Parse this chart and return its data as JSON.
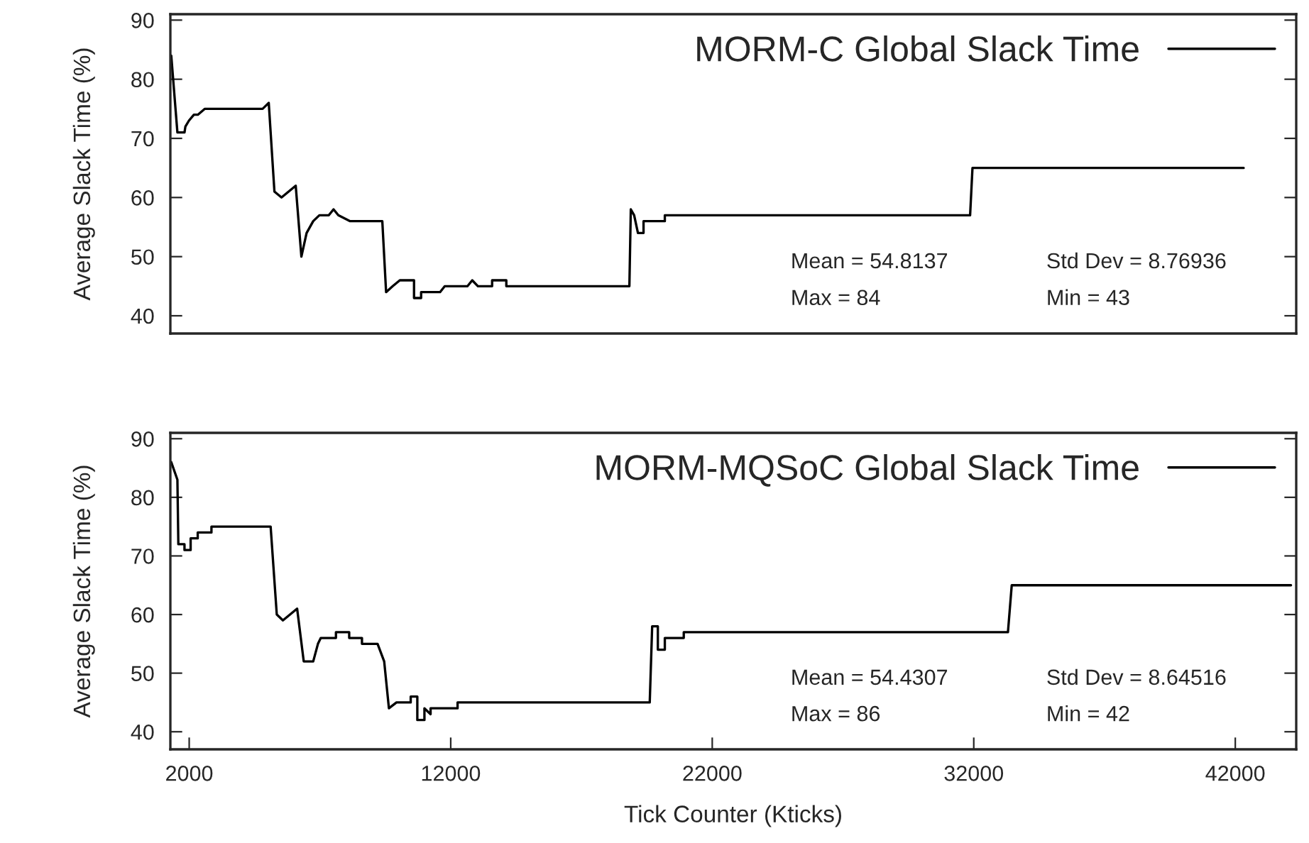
{
  "chart_data": [
    {
      "type": "line",
      "ylabel": "Average Slack Time (%)",
      "xlim": [
        1280,
        44330
      ],
      "ylim": [
        37,
        91
      ],
      "yticks": [
        40,
        50,
        60,
        70,
        80,
        90
      ],
      "tick_labels": "y",
      "legend": "top right",
      "grid": false,
      "series": [
        {
          "name": "MORM-C Global Slack Time",
          "color": "#000000",
          "x": [
            1314,
            1549,
            1820,
            1855,
            1990,
            2180,
            2330,
            2600,
            2815,
            4807,
            5042,
            5259,
            5530,
            6073,
            6290,
            6489,
            6742,
            6977,
            7339,
            7520,
            7701,
            8153,
            9384,
            9529,
            9782,
            10054,
            10597,
            10597,
            10868,
            10868,
            11592,
            11773,
            12642,
            12823,
            13040,
            13583,
            13583,
            14126,
            14126,
            18832,
            18886,
            19014,
            19159,
            19373,
            19373,
            20187,
            20187,
            31860,
            31951,
            42320
          ],
          "values": [
            84,
            71,
            71,
            72,
            73,
            74,
            74,
            75,
            75,
            75,
            76,
            61,
            60,
            62,
            50,
            54,
            56,
            57,
            57,
            58,
            57,
            56,
            56,
            44,
            45,
            46,
            46,
            43,
            43,
            44,
            44,
            45,
            45,
            46,
            45,
            45,
            46,
            46,
            45,
            45,
            58,
            57,
            54,
            54,
            56,
            56,
            57,
            57,
            65,
            65
          ]
        }
      ],
      "annotations": [
        "Mean = 54.8137",
        "Std Dev = 8.76936",
        "Max = 84",
        "Min = 43"
      ]
    },
    {
      "type": "line",
      "ylabel": "Average Slack Time (%)",
      "xlabel": "Tick Counter (Kticks)",
      "xlim": [
        1280,
        44330
      ],
      "ylim": [
        37,
        91
      ],
      "xticks": [
        2000,
        12000,
        22000,
        32000,
        42000
      ],
      "yticks": [
        40,
        50,
        60,
        70,
        80,
        90
      ],
      "legend": "top right",
      "grid": false,
      "series": [
        {
          "name": "MORM-MQSoC Global Slack Time",
          "color": "#000000",
          "x": [
            1314,
            1549,
            1585,
            1820,
            1820,
            2055,
            2055,
            2326,
            2326,
            2851,
            2851,
            5114,
            5349,
            5584,
            6127,
            6380,
            6742,
            6923,
            7032,
            7611,
            7611,
            8118,
            8118,
            8606,
            8606,
            9203,
            9456,
            9637,
            9927,
            10470,
            10470,
            10723,
            10723,
            10995,
            10995,
            11230,
            11230,
            12262,
            12262,
            19610,
            19703,
            19920,
            19920,
            20187,
            20187,
            20911,
            20911,
            33307,
            33452,
            44130
          ],
          "values": [
            86,
            83,
            72,
            72,
            71,
            71,
            73,
            73,
            74,
            74,
            75,
            75,
            60,
            59,
            61,
            52,
            52,
            55,
            56,
            56,
            57,
            57,
            56,
            56,
            55,
            55,
            52,
            44,
            45,
            45,
            46,
            46,
            42,
            42,
            44,
            43,
            44,
            44,
            45,
            45,
            58,
            58,
            54,
            54,
            56,
            56,
            57,
            57,
            65,
            65
          ]
        }
      ],
      "annotations": [
        "Mean = 54.4307",
        "Std Dev = 8.64516",
        "Max = 86",
        "Min = 42"
      ]
    }
  ]
}
